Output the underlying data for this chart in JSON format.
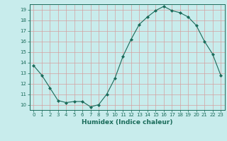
{
  "x": [
    0,
    1,
    2,
    3,
    4,
    5,
    6,
    7,
    8,
    9,
    10,
    11,
    12,
    13,
    14,
    15,
    16,
    17,
    18,
    19,
    20,
    21,
    22,
    23
  ],
  "y": [
    13.7,
    12.8,
    11.6,
    10.4,
    10.2,
    10.3,
    10.3,
    9.8,
    10.0,
    11.0,
    12.5,
    14.6,
    16.2,
    17.6,
    18.3,
    18.9,
    19.3,
    18.9,
    18.7,
    18.3,
    17.5,
    16.0,
    14.8,
    12.8
  ],
  "line_color": "#1a6b5a",
  "marker": "D",
  "markersize": 2,
  "linewidth": 0.8,
  "bg_color": "#c8ecec",
  "grid_color": "#d4a0a0",
  "xlabel": "Humidex (Indice chaleur)",
  "xlim": [
    -0.5,
    23.5
  ],
  "ylim": [
    9.5,
    19.5
  ],
  "yticks": [
    10,
    11,
    12,
    13,
    14,
    15,
    16,
    17,
    18,
    19
  ],
  "xticks": [
    0,
    1,
    2,
    3,
    4,
    5,
    6,
    7,
    8,
    9,
    10,
    11,
    12,
    13,
    14,
    15,
    16,
    17,
    18,
    19,
    20,
    21,
    22,
    23
  ],
  "tick_fontsize": 5,
  "xlabel_fontsize": 6.5
}
